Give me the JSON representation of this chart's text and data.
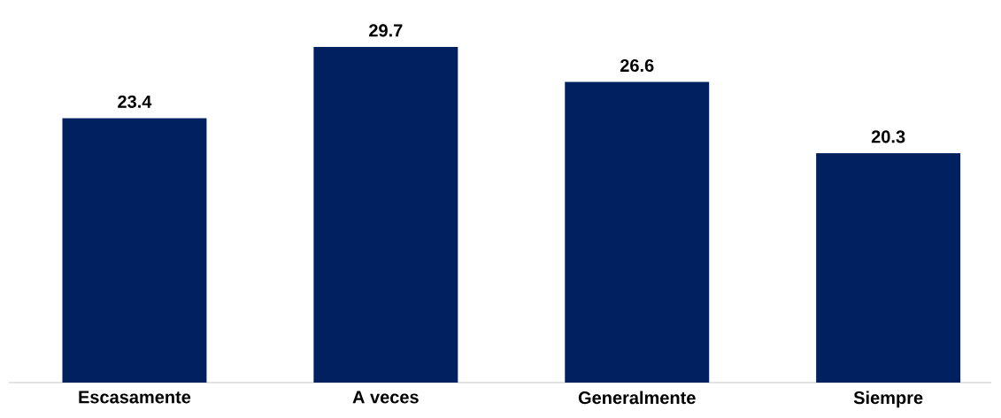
{
  "chart_data": {
    "type": "bar",
    "categories": [
      "Escasamente",
      "A veces",
      "Generalmente",
      "Siempre"
    ],
    "values": [
      23.4,
      29.7,
      26.6,
      20.3
    ],
    "color": "#002060",
    "data_labels": true
  }
}
